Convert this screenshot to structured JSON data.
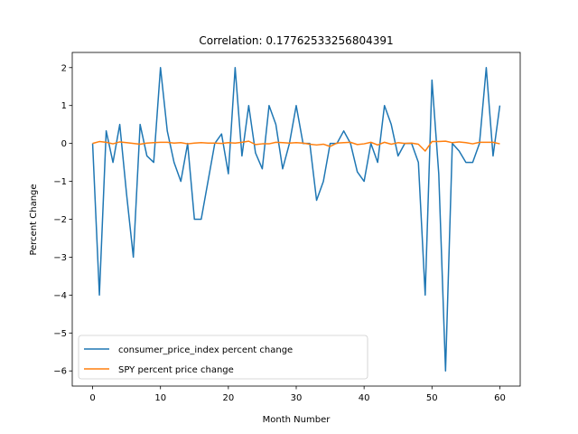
{
  "chart_data": {
    "type": "line",
    "title": "Correlation: 0.17762533256804391",
    "xlabel": "Month Number",
    "ylabel": "Percent Change",
    "xlim": [
      -3,
      63
    ],
    "ylim": [
      -6.4,
      2.4
    ],
    "xticks": [
      0,
      10,
      20,
      30,
      40,
      50,
      60
    ],
    "yticks": [
      -6,
      -5,
      -4,
      -3,
      -2,
      -1,
      0,
      1,
      2
    ],
    "legend_position": "lower-left",
    "grid": false,
    "x": [
      0,
      1,
      2,
      3,
      4,
      5,
      6,
      7,
      8,
      9,
      10,
      11,
      12,
      13,
      14,
      15,
      16,
      17,
      18,
      19,
      20,
      21,
      22,
      23,
      24,
      25,
      26,
      27,
      28,
      29,
      30,
      31,
      32,
      33,
      34,
      35,
      36,
      37,
      38,
      39,
      40,
      41,
      42,
      43,
      44,
      45,
      46,
      47,
      48,
      49,
      50,
      51,
      52,
      53,
      54,
      55,
      56,
      57,
      58,
      59,
      60
    ],
    "series": [
      {
        "name": "consumer_price_index percent change",
        "color": "#1f77b4",
        "values": [
          0,
          -4,
          0.33,
          -0.5,
          0.5,
          -1.33,
          -3,
          0.5,
          -0.33,
          -0.5,
          2,
          0.33,
          -0.5,
          -1,
          0,
          -2,
          -2,
          -1,
          0,
          0.25,
          -0.8,
          2,
          -0.33,
          1,
          -0.25,
          -0.67,
          1,
          0.5,
          -0.67,
          0,
          1,
          0,
          0,
          -1.5,
          -1,
          0,
          0,
          0.33,
          0,
          -0.75,
          -1,
          0,
          -0.5,
          1,
          0.5,
          -0.33,
          0,
          0,
          -0.5,
          -4,
          1.67,
          -0.8,
          -6,
          0,
          -0.2,
          -0.5,
          -0.5,
          0,
          2,
          -0.33,
          1
        ]
      },
      {
        "name": "SPY percent price change",
        "color": "#ff7f0e",
        "values": [
          0,
          0.05,
          0.03,
          -0.01,
          0.04,
          0.02,
          0,
          -0.02,
          0.01,
          0.02,
          0.03,
          0.03,
          0.01,
          0.02,
          -0.01,
          0.01,
          0.02,
          0.01,
          0.01,
          0,
          0.02,
          0.01,
          0.03,
          0.06,
          -0.03,
          -0.01,
          -0.01,
          0.03,
          0.02,
          0.01,
          0.02,
          0.01,
          -0.02,
          -0.04,
          -0.02,
          -0.08,
          0.01,
          0.02,
          0.03,
          -0.03,
          -0.01,
          0.03,
          -0.04,
          0.03,
          -0.02,
          0.02,
          0,
          0.01,
          -0.02,
          -0.2,
          0.05,
          0.05,
          0.06,
          0.02,
          0.04,
          0.02,
          -0.01,
          0.03,
          0.03,
          0.03,
          -0.01
        ]
      }
    ]
  }
}
